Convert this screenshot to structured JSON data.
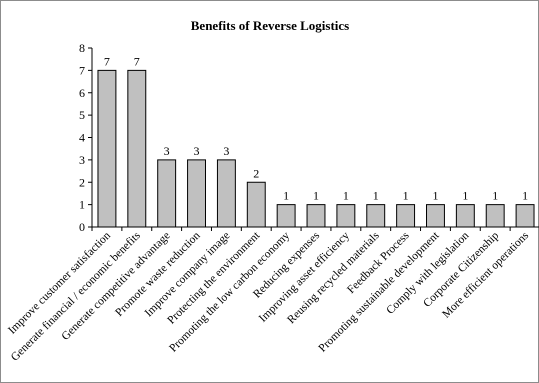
{
  "chart_data": {
    "type": "bar",
    "title": "Benefits of Reverse Logistics",
    "categories": [
      "Improve customer satisfaction",
      "Generate financial / economic benefits",
      "Generate competitive advantage",
      "Promote waste reduction",
      "Improve company image",
      "Protecting the environment",
      "Promoting the low carbon economy",
      "Reducing expenses",
      "Improving asset efficiency",
      "Reusing recycled materials",
      "Feedback Process",
      "Promoting sustainable development",
      "Comply with legislation",
      "Corporate Citizenship",
      "More efficient operations"
    ],
    "values": [
      7,
      7,
      3,
      3,
      3,
      2,
      1,
      1,
      1,
      1,
      1,
      1,
      1,
      1,
      1
    ],
    "ylim": [
      0,
      8
    ],
    "yticks": [
      0,
      1,
      2,
      3,
      4,
      5,
      6,
      7,
      8
    ],
    "xlabel": "",
    "ylabel": "",
    "grid": false,
    "data_labels": true,
    "bar_color": "#c0c0c0"
  }
}
